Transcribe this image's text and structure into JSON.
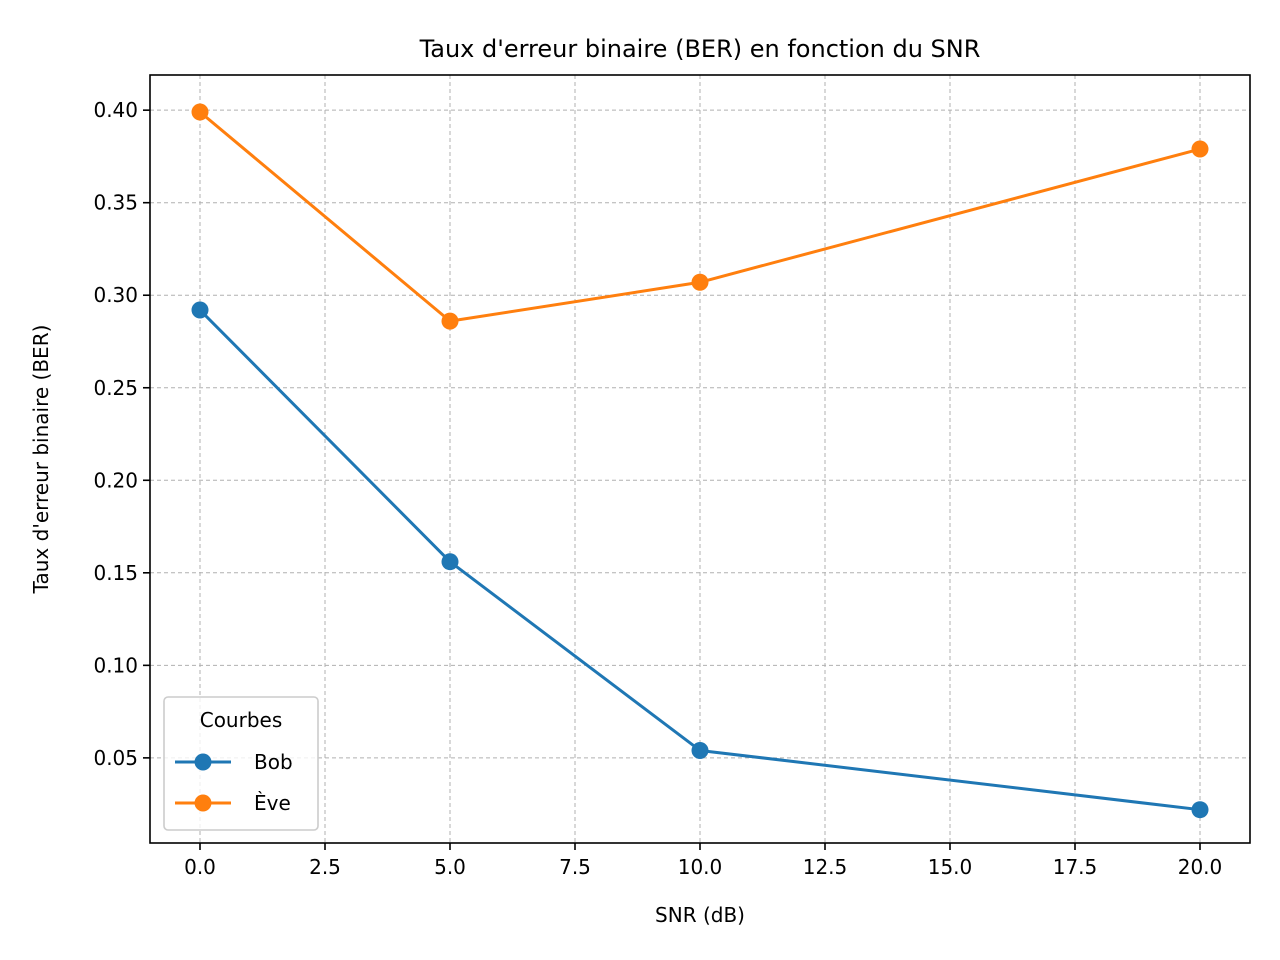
{
  "chart_data": {
    "type": "line",
    "title": "Taux d'erreur binaire (BER) en fonction du SNR",
    "xlabel": "SNR (dB)",
    "ylabel": "Taux d'erreur binaire (BER)",
    "xlim": [
      -1.0,
      21.0
    ],
    "ylim": [
      0.004,
      0.419
    ],
    "xticks": [
      0.0,
      2.5,
      5.0,
      7.5,
      10.0,
      12.5,
      15.0,
      17.5,
      20.0
    ],
    "xtick_labels": [
      "0.0",
      "2.5",
      "5.0",
      "7.5",
      "10.0",
      "12.5",
      "15.0",
      "17.5",
      "20.0"
    ],
    "yticks": [
      0.05,
      0.1,
      0.15,
      0.2,
      0.25,
      0.3,
      0.35,
      0.4
    ],
    "ytick_labels": [
      "0.05",
      "0.10",
      "0.15",
      "0.20",
      "0.25",
      "0.30",
      "0.35",
      "0.40"
    ],
    "grid": true,
    "grid_style": "dashed",
    "legend": {
      "title": "Courbes",
      "placement": "lower-left"
    },
    "x": [
      0,
      5,
      10,
      20
    ],
    "series": [
      {
        "name": "Bob",
        "color": "#1f77b4",
        "values": [
          0.292,
          0.156,
          0.054,
          0.022
        ]
      },
      {
        "name": "Ève",
        "color": "#ff7f0e",
        "values": [
          0.399,
          0.286,
          0.307,
          0.379
        ]
      }
    ]
  }
}
